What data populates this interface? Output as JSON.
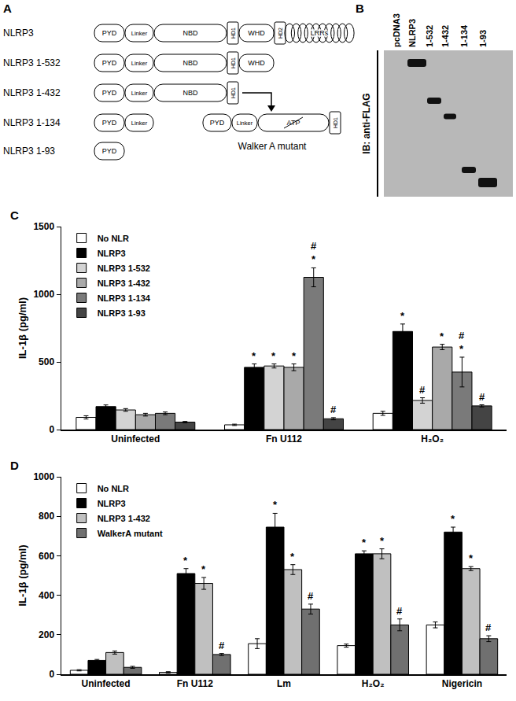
{
  "diagram": {
    "panel_label": "A",
    "constructs": [
      {
        "name": "NLRP3",
        "domains": [
          "PYD",
          "Linker",
          "NBD",
          "HD1",
          "WHD",
          "HD2",
          "LRRs"
        ]
      },
      {
        "name": "NLRP3 1-532",
        "domains": [
          "PYD",
          "Linker",
          "NBD",
          "HD1",
          "WHD"
        ]
      },
      {
        "name": "NLRP3 1-432",
        "domains": [
          "PYD",
          "Linker",
          "NBD",
          "HD1"
        ]
      },
      {
        "name": "NLRP3 1-134",
        "domains": [
          "PYD",
          "Linker"
        ]
      },
      {
        "name": "NLRP3 1-93",
        "domains": [
          "PYD"
        ]
      }
    ],
    "mutant": {
      "name": "Walker A mutant",
      "domains": [
        "PYD",
        "Linker",
        "ATP",
        "HD1"
      ]
    }
  },
  "blot": {
    "panel_label": "B",
    "label": "IB: anti-FLAG",
    "lanes": [
      "pcDNA3",
      "NLRP3",
      "1-532",
      "1-432",
      "1-134",
      "1-93"
    ]
  },
  "chart_data": [
    {
      "panel_label": "C",
      "type": "bar",
      "y_label": "IL-1β (pg/ml)",
      "categories": [
        "Uninfected",
        "Fn U112",
        "H₂O₂"
      ],
      "ylim": [
        0,
        1500
      ],
      "yticks": [
        0,
        500,
        1000,
        1500
      ],
      "grid": false,
      "legend": "top-left",
      "series": [
        {
          "name": "No NLR",
          "color": "#ffffff",
          "values": [
            90,
            35,
            120
          ],
          "errors": [
            12,
            5,
            15
          ],
          "significance": [
            null,
            null,
            null
          ]
        },
        {
          "name": "NLRP3",
          "color": "#000000",
          "values": [
            170,
            460,
            725
          ],
          "errors": [
            12,
            25,
            55
          ],
          "significance": [
            null,
            [
              "*"
            ],
            [
              "*"
            ]
          ]
        },
        {
          "name": "NLRP3 1-532",
          "color": "#d3d3d3",
          "values": [
            145,
            470,
            215
          ],
          "errors": [
            10,
            15,
            20
          ],
          "significance": [
            null,
            [
              "*"
            ],
            [
              "#"
            ]
          ]
        },
        {
          "name": "NLRP3 1-432",
          "color": "#a9a9a9",
          "values": [
            110,
            460,
            610
          ],
          "errors": [
            10,
            25,
            20
          ],
          "significance": [
            null,
            [
              "*"
            ],
            [
              "*"
            ]
          ]
        },
        {
          "name": "NLRP3 1-134",
          "color": "#7a7a7a",
          "values": [
            120,
            1125,
            425
          ],
          "errors": [
            10,
            70,
            110
          ],
          "significance": [
            null,
            [
              "#",
              "*"
            ],
            [
              "#",
              "*"
            ]
          ]
        },
        {
          "name": "NLRP3 1-93",
          "color": "#444444",
          "values": [
            55,
            80,
            175
          ],
          "errors": [
            5,
            8,
            8
          ],
          "significance": [
            null,
            [
              "#"
            ],
            [
              "#"
            ]
          ]
        }
      ]
    },
    {
      "panel_label": "D",
      "type": "bar",
      "y_label": "IL-1β (pg/ml)",
      "categories": [
        "Uninfected",
        "Fn U112",
        "Lm",
        "H₂O₂",
        "Nigericin"
      ],
      "ylim": [
        0,
        1000
      ],
      "yticks": [
        0,
        200,
        400,
        600,
        800,
        1000
      ],
      "grid": false,
      "legend": "top-left",
      "series": [
        {
          "name": "No NLR",
          "color": "#ffffff",
          "values": [
            20,
            10,
            155,
            145,
            250
          ],
          "errors": [
            3,
            3,
            25,
            8,
            15
          ],
          "significance": [
            null,
            null,
            null,
            null,
            null
          ]
        },
        {
          "name": "NLRP3",
          "color": "#000000",
          "values": [
            70,
            510,
            745,
            610,
            720
          ],
          "errors": [
            5,
            25,
            70,
            15,
            25
          ],
          "significance": [
            null,
            [
              "*"
            ],
            [
              "*"
            ],
            [
              "*"
            ],
            [
              "*"
            ]
          ]
        },
        {
          "name": "NLRP3 1-432",
          "color": "#c0c0c0",
          "values": [
            110,
            460,
            530,
            610,
            535
          ],
          "errors": [
            8,
            30,
            25,
            25,
            10
          ],
          "significance": [
            null,
            [
              "*"
            ],
            [
              "*"
            ],
            [
              "*"
            ],
            [
              "*"
            ]
          ]
        },
        {
          "name": "WalkerA mutant",
          "color": "#707070",
          "values": [
            35,
            100,
            330,
            250,
            180
          ],
          "errors": [
            5,
            5,
            25,
            30,
            15
          ],
          "significance": [
            null,
            [
              "#"
            ],
            [
              "#"
            ],
            [
              "#"
            ],
            [
              "#"
            ]
          ]
        }
      ]
    }
  ]
}
